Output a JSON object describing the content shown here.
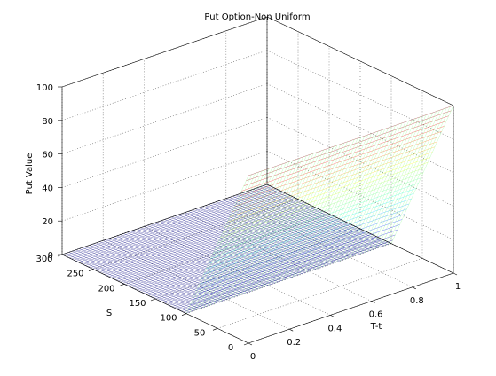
{
  "chart_data": {
    "type": "surface",
    "title": "Put Option-Non Uniform",
    "xlabel": "T-t",
    "ylabel": "S",
    "zlabel": "Put Value",
    "xlim": [
      0,
      1
    ],
    "ylim": [
      0,
      300
    ],
    "zlim": [
      0,
      100
    ],
    "xticks": [
      "0",
      "0.2",
      "0.4",
      "0.6",
      "0.8",
      "1"
    ],
    "yticks": [
      "0",
      "50",
      "100",
      "150",
      "200",
      "250",
      "300"
    ],
    "zticks": [
      "0",
      "20",
      "40",
      "60",
      "80",
      "100"
    ],
    "grid": true,
    "colormap": "jet",
    "surface": {
      "strike": 100,
      "value_at_S0": 100,
      "value_at_strike_and_above": 0,
      "constant_along": "T-t"
    }
  }
}
